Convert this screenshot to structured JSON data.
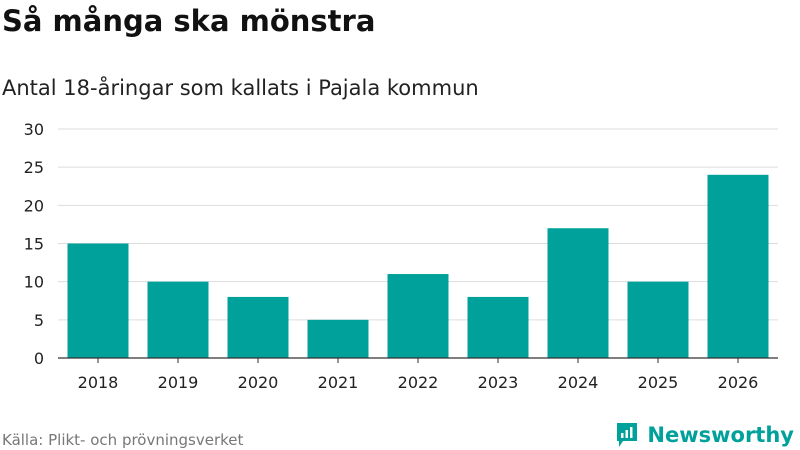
{
  "title": "Så många ska mönstra",
  "subtitle": "Antal 18-åringar som kallats i Pajala kommun",
  "source": "Källa: Plikt- och prövningsverket",
  "brand": {
    "name": "Newsworthy",
    "icon": "newsworthy-logo-icon"
  },
  "colors": {
    "bar": "#00a19a",
    "grid": "#dddddd",
    "axis": "#333333",
    "brand": "#00a19a"
  },
  "chart_data": {
    "type": "bar",
    "categories": [
      "2018",
      "2019",
      "2020",
      "2021",
      "2022",
      "2023",
      "2024",
      "2025",
      "2026"
    ],
    "values": [
      15,
      10,
      8,
      5,
      11,
      8,
      17,
      10,
      24
    ],
    "yticks": [
      0,
      5,
      10,
      15,
      20,
      25,
      30
    ],
    "ylim": [
      0,
      30
    ],
    "grid": true
  }
}
